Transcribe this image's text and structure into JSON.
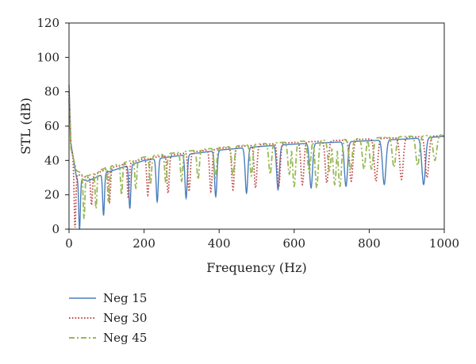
{
  "chart_data": {
    "type": "line",
    "xlabel": "Frequency (Hz)",
    "ylabel": "STL (dB)",
    "xlim": [
      0,
      1000
    ],
    "ylim": [
      0,
      120
    ],
    "xticks": [
      "0",
      "200",
      "400",
      "600",
      "800",
      "1000"
    ],
    "yticks": [
      "0",
      "20",
      "40",
      "60",
      "80",
      "100",
      "120"
    ],
    "grid": false,
    "legend_position": "below-left",
    "series": [
      {
        "name": "Neg 15",
        "color": "#4a7ebb",
        "style": "solid",
        "start_level": 84,
        "dip_frequencies": [
          28,
          92,
          162,
          235,
          312,
          391,
          473,
          557,
          645,
          738,
          840,
          945
        ],
        "dip_minima": [
          0,
          8,
          12,
          16,
          18,
          19,
          21,
          23,
          24,
          25,
          26,
          26
        ],
        "envelope": {
          "x": [
            0,
            5,
            20,
            50,
            100,
            200,
            300,
            400,
            500,
            600,
            700,
            800,
            900,
            1000
          ],
          "y": [
            84,
            50,
            30,
            28,
            33,
            40,
            43,
            46,
            48,
            49.5,
            50.5,
            51.5,
            52.5,
            54
          ]
        }
      },
      {
        "name": "Neg 30",
        "color": "#be4b48",
        "style": "dotted",
        "start_level": 80,
        "dip_frequencies": [
          16,
          60,
          108,
          158,
          210,
          264,
          320,
          378,
          437,
          497,
          559,
          622,
          687,
          752,
          818,
          886,
          954
        ],
        "dip_minima": [
          1,
          14,
          16,
          18,
          20,
          21,
          22,
          22,
          23,
          24,
          25,
          26,
          27,
          28,
          28,
          29,
          30
        ],
        "envelope": {
          "x": [
            0,
            5,
            20,
            50,
            100,
            200,
            300,
            400,
            500,
            600,
            700,
            800,
            900,
            1000
          ],
          "y": [
            80,
            48,
            32,
            30,
            35,
            41,
            44,
            47,
            49,
            50.5,
            51.5,
            52.5,
            53.5,
            54.5
          ]
        }
      },
      {
        "name": "Neg 45",
        "color": "#98b954",
        "style": "dash-dot",
        "start_level": 76,
        "dip_frequencies": [
          40,
          72,
          105,
          140,
          178,
          217,
          258,
          300,
          344,
          390,
          437,
          486,
          536,
          587,
          600,
          640,
          660,
          694,
          708,
          722,
          750,
          786,
          806,
          866,
          929,
          975
        ],
        "dip_minima": [
          6,
          12,
          16,
          20,
          24,
          26,
          27,
          28,
          29,
          30,
          31,
          31,
          32,
          32,
          25,
          33,
          24,
          34,
          26,
          25,
          34,
          35,
          35,
          36,
          37,
          40
        ],
        "envelope": {
          "x": [
            0,
            5,
            20,
            50,
            100,
            200,
            300,
            400,
            500,
            600,
            700,
            800,
            900,
            1000
          ],
          "y": [
            76,
            47,
            34,
            31,
            36,
            42,
            45,
            47.5,
            49.5,
            51,
            52,
            53,
            54,
            55
          ]
        }
      }
    ]
  }
}
